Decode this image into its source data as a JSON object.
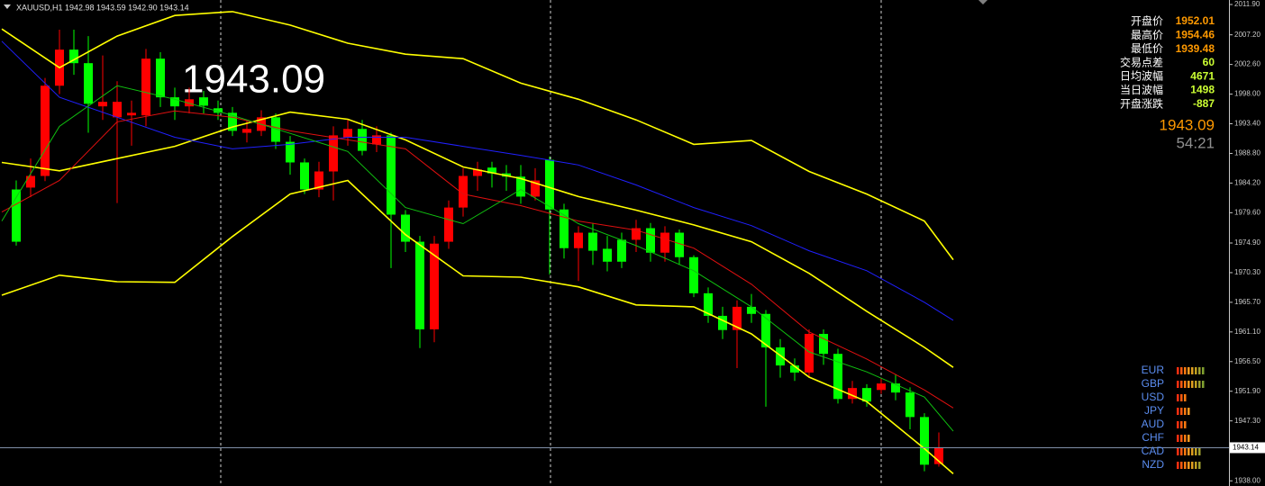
{
  "chart_data": {
    "type": "candlestick",
    "header": "XAUUSD,H1  1942.98 1943.59 1942.90 1943.14",
    "big_price": 1943.09,
    "last_price": 1943.09,
    "timer": "54:21",
    "current_price": 1943.14,
    "ylim": [
      1937.2,
      2012.6
    ],
    "yticks": [
      {
        "value": 2011.9,
        "label": "2011.90"
      },
      {
        "value": 2007.2,
        "label": "2007.20"
      },
      {
        "value": 2002.6,
        "label": "2002.60"
      },
      {
        "value": 1998.0,
        "label": "1998.00"
      },
      {
        "value": 1993.4,
        "label": "1993.40"
      },
      {
        "value": 1988.8,
        "label": "1988.80"
      },
      {
        "value": 1984.2,
        "label": "1984.20"
      },
      {
        "value": 1979.6,
        "label": "1979.60"
      },
      {
        "value": 1974.9,
        "label": "1974.90"
      },
      {
        "value": 1970.3,
        "label": "1970.30"
      },
      {
        "value": 1965.7,
        "label": "1965.70"
      },
      {
        "value": 1961.1,
        "label": "1961.10"
      },
      {
        "value": 1956.5,
        "label": "1956.50"
      },
      {
        "value": 1951.9,
        "label": "1951.90"
      },
      {
        "value": 1947.3,
        "label": "1947.30"
      },
      {
        "value": 1938.0,
        "label": "1938.00"
      }
    ],
    "up_color": "#ff0000",
    "down_color": "#00ff00",
    "open": [
      1983.2,
      1983.5,
      1985.3,
      1999.3,
      2004.9,
      2002.8,
      1996.1,
      1994.4,
      1994.7,
      1994.7,
      2003.5,
      1997.5,
      1996.1,
      1997.5,
      1995.8,
      1995.1,
      1992.0,
      1992.3,
      1994.4,
      1990.6,
      1987.4,
      1983.2,
      1986.0,
      1991.3,
      1992.6,
      1990.2,
      1991.6,
      1979.3,
      1975.1,
      1961.5,
      1975.1,
      1980.4,
      1985.3,
      1986.6,
      1985.7,
      1985.2,
      1982.1,
      1987.8,
      1980.1,
      1974.1,
      1976.5,
      1974.0,
      1975.4,
      1975.4,
      1977.2,
      1973.4,
      1976.5,
      1972.7,
      1967.1,
      1963.6,
      1961.4,
      1965.0,
      1963.9,
      1958.7,
      1955.9,
      1954.8,
      1960.8,
      1957.7,
      1950.7,
      1952.4,
      1952.1,
      1953.1,
      1951.7,
      1947.9,
      1940.6
    ],
    "high": [
      1984.6,
      1988.0,
      2000.5,
      2008.0,
      2008.0,
      2007.0,
      2004.0,
      2000.0,
      1997.0,
      2005.0,
      2004.5,
      1999.0,
      1999.0,
      1998.5,
      1997.0,
      1996.0,
      1994.0,
      1995.5,
      1995.0,
      1991.5,
      1988.0,
      1987.5,
      1993.0,
      1994.0,
      1994.0,
      1993.0,
      1992.0,
      1980.0,
      1976.0,
      1976.0,
      1981.5,
      1986.5,
      1987.5,
      1987.5,
      1987.0,
      1987.0,
      1986.5,
      1988.3,
      1981.0,
      1977.5,
      1978.0,
      1976.0,
      1976.5,
      1978.5,
      1978.0,
      1977.5,
      1977.0,
      1973.0,
      1968.0,
      1965.0,
      1966.0,
      1967.0,
      1964.5,
      1960.0,
      1957.0,
      1961.5,
      1961.5,
      1958.5,
      1953.5,
      1953.0,
      1954.0,
      1954.5,
      1952.5,
      1948.5,
      1945.5
    ],
    "low": [
      1974.5,
      1982.0,
      1984.5,
      1998.0,
      2001.0,
      1992.0,
      1994.0,
      1981.1,
      1990.0,
      1993.0,
      1996.0,
      1994.0,
      1995.0,
      1995.0,
      1994.0,
      1991.5,
      1990.5,
      1991.5,
      1989.5,
      1985.5,
      1982.5,
      1982.0,
      1981.5,
      1990.0,
      1988.5,
      1989.0,
      1971.0,
      1973.5,
      1958.6,
      1959.5,
      1974.0,
      1979.0,
      1983.0,
      1983.5,
      1983.0,
      1981.0,
      1981.5,
      1970.0,
      1972.5,
      1969.0,
      1971.5,
      1970.5,
      1971.0,
      1973.5,
      1972.0,
      1972.0,
      1971.5,
      1966.5,
      1962.5,
      1960.0,
      1955.5,
      1962.5,
      1949.5,
      1954.0,
      1953.5,
      1954.0,
      1956.0,
      1950.0,
      1950.0,
      1949.5,
      1951.5,
      1950.5,
      1946.0,
      1939.48,
      1940.2
    ],
    "close": [
      1975.1,
      1985.3,
      1999.3,
      2004.9,
      2002.8,
      1996.5,
      1996.8,
      1996.8,
      1995.1,
      2003.5,
      1997.5,
      1996.1,
      1997.2,
      1996.2,
      1995.1,
      1992.3,
      1992.6,
      1994.4,
      1990.6,
      1987.4,
      1983.2,
      1986.0,
      1991.6,
      1992.6,
      1989.2,
      1991.6,
      1979.3,
      1975.1,
      1961.5,
      1974.8,
      1980.4,
      1985.3,
      1986.3,
      1985.7,
      1985.2,
      1982.1,
      1984.6,
      1980.1,
      1974.1,
      1976.5,
      1973.7,
      1972.0,
      1972.0,
      1977.2,
      1973.4,
      1976.5,
      1972.7,
      1967.1,
      1963.6,
      1961.4,
      1965.0,
      1963.9,
      1958.7,
      1955.9,
      1954.8,
      1960.8,
      1957.7,
      1950.7,
      1952.4,
      1950.3,
      1953.1,
      1951.7,
      1947.9,
      1940.5,
      1943.09
    ],
    "overlay_x": [
      -1,
      3,
      7,
      11,
      15,
      19,
      23,
      27,
      31,
      35,
      39,
      43,
      47,
      51,
      55,
      59,
      63,
      65
    ],
    "overlays": [
      {
        "color": "#ffff00",
        "values": [
          2008.1,
          2002.1,
          2007.0,
          2010.2,
          2010.8,
          2008.7,
          2005.9,
          2004.2,
          2003.5,
          1999.7,
          1997.2,
          1994.0,
          1990.2,
          1990.8,
          1986.0,
          1982.5,
          1978.3,
          1972.3
        ]
      },
      {
        "color": "#ffff00",
        "values": [
          1987.4,
          1986.1,
          1988.0,
          1989.9,
          1992.9,
          1995.2,
          1994.1,
          1990.9,
          1986.7,
          1984.9,
          1982.1,
          1980.0,
          1977.7,
          1975.1,
          1970.2,
          1964.3,
          1958.7,
          1955.6
        ]
      },
      {
        "color": "#ffff00",
        "values": [
          1966.8,
          1969.9,
          1968.9,
          1968.8,
          1975.9,
          1982.5,
          1984.6,
          1976.2,
          1969.8,
          1969.6,
          1968.1,
          1965.3,
          1965.0,
          1960.8,
          1954.1,
          1950.3,
          1943.0,
          1939.1
        ]
      },
      {
        "color": "#2020ff",
        "values": [
          2006.2,
          1997.5,
          1994.4,
          1991.3,
          1989.5,
          1990.2,
          1991.3,
          1991.3,
          1989.9,
          1988.5,
          1987.0,
          1983.9,
          1980.4,
          1977.6,
          1973.7,
          1970.6,
          1965.7,
          1962.9
        ]
      },
      {
        "color": "#e01010",
        "values": [
          1979.7,
          1984.6,
          1993.7,
          1995.4,
          1994.4,
          1992.3,
          1990.9,
          1989.5,
          1982.5,
          1980.7,
          1978.3,
          1976.9,
          1974.1,
          1968.5,
          1961.1,
          1956.9,
          1952.1,
          1949.3
        ]
      },
      {
        "color": "#10c010",
        "values": [
          1978.3,
          1993.0,
          1999.3,
          1997.2,
          1994.7,
          1991.9,
          1989.1,
          1980.4,
          1977.9,
          1983.2,
          1977.9,
          1974.5,
          1970.6,
          1965.0,
          1958.0,
          1954.9,
          1951.0,
          1945.7
        ]
      }
    ],
    "info": [
      {
        "label": "开盘价",
        "value": 1952.01,
        "color": "#ff9900"
      },
      {
        "label": "最高价",
        "value": 1954.46,
        "color": "#ff9900"
      },
      {
        "label": "最低价",
        "value": 1939.48,
        "color": "#ff9900"
      },
      {
        "label": "交易点差",
        "value": 60,
        "color": "#ccff33"
      },
      {
        "label": "日均波幅",
        "value": 4671,
        "color": "#ccff33"
      },
      {
        "label": "当日波幅",
        "value": 1498,
        "color": "#ccff33"
      },
      {
        "label": "开盘涨跌",
        "value": -887,
        "color": "#ccff33"
      }
    ],
    "strength": {
      "currencies": [
        "EUR",
        "GBP",
        "USD",
        "JPY",
        "AUD",
        "CHF",
        "CAD",
        "NZD"
      ],
      "values": [
        8,
        8,
        3,
        4,
        3,
        4,
        7,
        7
      ]
    }
  }
}
